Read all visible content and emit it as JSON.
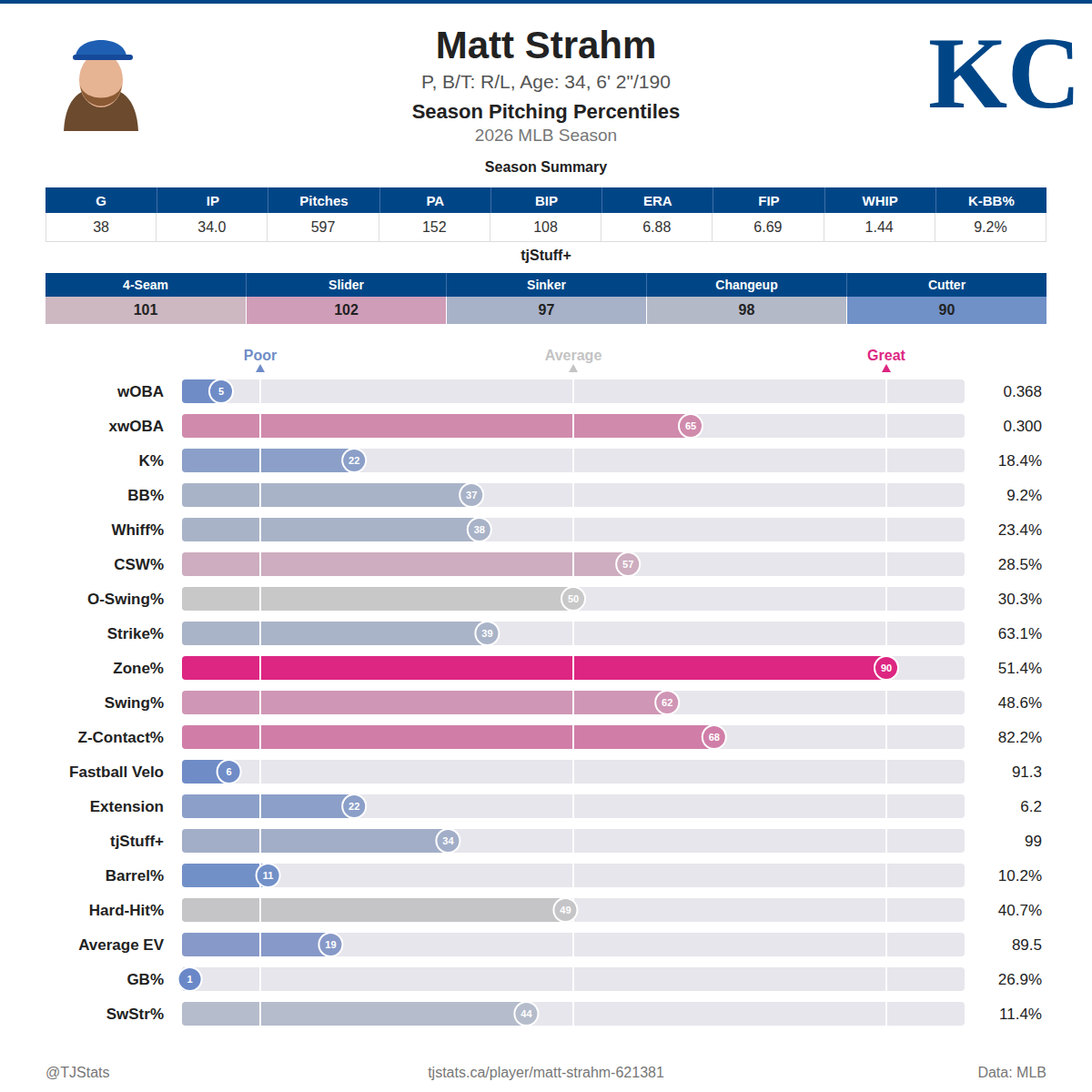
{
  "header": {
    "name": "Matt Strahm",
    "info": "P, B/T: R/L, Age: 34, 6' 2\"/190",
    "title": "Season Pitching Percentiles",
    "season": "2026 MLB Season",
    "logo": "KC"
  },
  "season_summary": {
    "title": "Season Summary",
    "columns": [
      "G",
      "IP",
      "Pitches",
      "PA",
      "BIP",
      "ERA",
      "FIP",
      "WHIP",
      "K-BB%"
    ],
    "values": [
      "38",
      "34.0",
      "597",
      "152",
      "108",
      "6.88",
      "6.69",
      "1.44",
      "9.2%"
    ]
  },
  "tjstuff": {
    "title": "tjStuff+",
    "columns": [
      "4-Seam",
      "Slider",
      "Sinker",
      "Changeup",
      "Cutter"
    ],
    "values": [
      101,
      102,
      97,
      98,
      90
    ],
    "colors": [
      "#cdb8c2",
      "#d09db8",
      "#a7b1c8",
      "#b4b9c8",
      "#7090c8"
    ]
  },
  "chart_data": {
    "type": "bar",
    "orientation": "horizontal",
    "categories": [
      "wOBA",
      "xwOBA",
      "K%",
      "BB%",
      "Whiff%",
      "CSW%",
      "O-Swing%",
      "Strike%",
      "Zone%",
      "Swing%",
      "Z-Contact%",
      "Fastball Velo",
      "Extension",
      "tjStuff+",
      "Barrel%",
      "Hard-Hit%",
      "Average EV",
      "GB%",
      "SwStr%"
    ],
    "values": [
      5,
      65,
      22,
      37,
      38,
      57,
      50,
      39,
      90,
      62,
      68,
      6,
      22,
      34,
      11,
      49,
      19,
      1,
      44
    ],
    "colors": [
      "#6f8cc7",
      "#d08aac",
      "#8b9fc8",
      "#a9b3c8",
      "#a9b3c8",
      "#cdadbf",
      "#c8c8c8",
      "#aab4c8",
      "#dd2682",
      "#d096b5",
      "#d07ea8",
      "#6f8cc7",
      "#8b9fc8",
      "#a2aec8",
      "#7290c8",
      "#c5c5c8",
      "#8799c8",
      "#6a88c8",
      "#b5bccb"
    ],
    "stat_values": [
      "0.368",
      "0.300",
      "18.4%",
      "9.2%",
      "23.4%",
      "28.5%",
      "30.3%",
      "63.1%",
      "51.4%",
      "48.6%",
      "82.2%",
      "91.3",
      "6.2",
      "99",
      "10.2%",
      "40.7%",
      "89.5",
      "26.9%",
      "11.4%"
    ],
    "xlim": [
      0,
      100
    ],
    "data_labels": true,
    "tick_labels": "y",
    "markers": [
      {
        "value": 10,
        "label": "Poor",
        "color": "#6f8cc7"
      },
      {
        "value": 50,
        "label": "Average",
        "color": "#c4c4c4"
      },
      {
        "value": 90,
        "label": "Great",
        "color": "#dd2682"
      }
    ]
  },
  "footer": {
    "left": "@TJStats",
    "center": "tjstats.ca/player/matt-strahm-621381",
    "right": "Data: MLB"
  }
}
